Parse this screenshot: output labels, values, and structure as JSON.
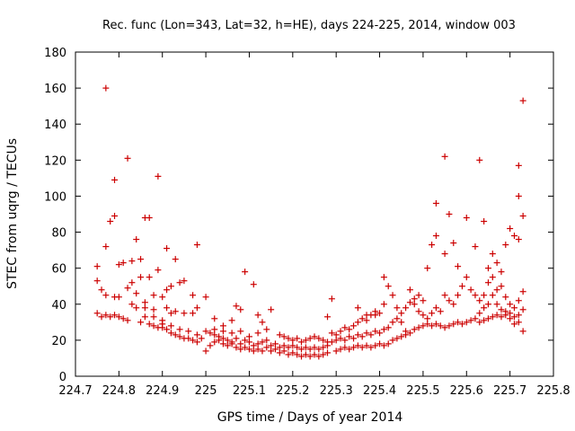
{
  "chart_data": {
    "type": "scatter",
    "title": "Rec. func (Lon=343, Lat=32, h=HE), days 224-225, 2014, window 003",
    "xlabel": "GPS time / Days of year 2014",
    "ylabel": "STEC from uqrg / TECUs",
    "xlim": [
      224.7,
      225.8
    ],
    "ylim": [
      0,
      180
    ],
    "xticks": [
      "224.7",
      "224.8",
      "224.9",
      "225",
      "225.1",
      "225.2",
      "225.3",
      "225.4",
      "225.5",
      "225.6",
      "225.7",
      "225.8"
    ],
    "yticks": [
      "0",
      "20",
      "40",
      "60",
      "80",
      "100",
      "120",
      "140",
      "160",
      "180"
    ],
    "grid": false,
    "marker": "+",
    "color": "#cc0000",
    "points": [
      [
        224.77,
        160
      ],
      [
        224.82,
        121
      ],
      [
        224.79,
        109
      ],
      [
        224.89,
        111
      ],
      [
        224.79,
        89
      ],
      [
        224.78,
        86
      ],
      [
        224.86,
        88
      ],
      [
        224.87,
        88
      ],
      [
        224.77,
        72
      ],
      [
        224.84,
        76
      ],
      [
        224.91,
        71
      ],
      [
        224.98,
        73
      ],
      [
        224.75,
        61
      ],
      [
        224.8,
        62
      ],
      [
        224.81,
        63
      ],
      [
        224.83,
        64
      ],
      [
        224.85,
        65
      ],
      [
        224.89,
        59
      ],
      [
        224.93,
        65
      ],
      [
        224.75,
        53
      ],
      [
        224.76,
        48
      ],
      [
        224.77,
        45
      ],
      [
        224.79,
        44
      ],
      [
        224.8,
        44
      ],
      [
        224.82,
        49
      ],
      [
        224.83,
        52
      ],
      [
        224.85,
        55
      ],
      [
        224.86,
        41
      ],
      [
        224.87,
        55
      ],
      [
        224.88,
        45
      ],
      [
        224.9,
        44
      ],
      [
        224.91,
        48
      ],
      [
        224.92,
        50
      ],
      [
        224.94,
        52
      ],
      [
        224.95,
        53
      ],
      [
        224.97,
        45
      ],
      [
        224.98,
        38
      ],
      [
        224.75,
        35
      ],
      [
        224.76,
        33
      ],
      [
        224.77,
        34
      ],
      [
        224.78,
        33
      ],
      [
        224.79,
        34
      ],
      [
        224.8,
        33
      ],
      [
        224.81,
        32
      ],
      [
        224.82,
        31
      ],
      [
        224.83,
        40
      ],
      [
        224.84,
        38
      ],
      [
        224.85,
        30
      ],
      [
        224.86,
        33
      ],
      [
        224.87,
        29
      ],
      [
        224.88,
        28
      ],
      [
        224.89,
        27
      ],
      [
        224.9,
        27
      ],
      [
        224.91,
        26
      ],
      [
        224.92,
        24
      ],
      [
        224.93,
        23
      ],
      [
        224.94,
        22
      ],
      [
        224.95,
        21
      ],
      [
        224.96,
        21
      ],
      [
        224.97,
        20
      ],
      [
        224.98,
        19
      ],
      [
        224.99,
        21
      ],
      [
        224.88,
        33
      ],
      [
        224.9,
        31
      ],
      [
        224.92,
        28
      ],
      [
        224.94,
        26
      ],
      [
        224.96,
        25
      ],
      [
        224.98,
        23
      ],
      [
        224.91,
        38
      ],
      [
        224.93,
        36
      ],
      [
        224.95,
        35
      ],
      [
        224.97,
        35
      ],
      [
        224.84,
        46
      ],
      [
        224.86,
        38
      ],
      [
        224.88,
        37
      ],
      [
        224.9,
        29
      ],
      [
        224.92,
        35
      ],
      [
        225.0,
        14
      ],
      [
        225.01,
        17
      ],
      [
        225.02,
        19
      ],
      [
        225.03,
        20
      ],
      [
        225.04,
        18
      ],
      [
        225.05,
        17
      ],
      [
        225.06,
        18
      ],
      [
        225.07,
        16
      ],
      [
        225.08,
        15
      ],
      [
        225.09,
        16
      ],
      [
        225.1,
        15
      ],
      [
        225.11,
        14
      ],
      [
        225.12,
        15
      ],
      [
        225.13,
        14
      ],
      [
        225.14,
        16
      ],
      [
        225.0,
        25
      ],
      [
        225.01,
        24
      ],
      [
        225.02,
        23
      ],
      [
        225.03,
        22
      ],
      [
        225.04,
        21
      ],
      [
        225.05,
        20
      ],
      [
        225.06,
        19
      ],
      [
        225.07,
        21
      ],
      [
        225.08,
        18
      ],
      [
        225.09,
        20
      ],
      [
        225.1,
        19
      ],
      [
        225.11,
        17
      ],
      [
        225.12,
        18
      ],
      [
        225.13,
        19
      ],
      [
        225.14,
        20
      ],
      [
        225.0,
        44
      ],
      [
        225.02,
        32
      ],
      [
        225.04,
        28
      ],
      [
        225.06,
        31
      ],
      [
        225.07,
        39
      ],
      [
        225.08,
        37
      ],
      [
        225.09,
        58
      ],
      [
        225.11,
        51
      ],
      [
        225.12,
        34
      ],
      [
        225.13,
        30
      ],
      [
        225.15,
        37
      ],
      [
        225.02,
        26
      ],
      [
        225.04,
        25
      ],
      [
        225.06,
        24
      ],
      [
        225.08,
        25
      ],
      [
        225.1,
        22
      ],
      [
        225.12,
        24
      ],
      [
        225.14,
        26
      ],
      [
        225.15,
        14
      ],
      [
        225.16,
        15
      ],
      [
        225.17,
        13
      ],
      [
        225.18,
        14
      ],
      [
        225.19,
        12
      ],
      [
        225.2,
        13
      ],
      [
        225.21,
        12
      ],
      [
        225.22,
        11
      ],
      [
        225.23,
        12
      ],
      [
        225.24,
        11
      ],
      [
        225.25,
        12
      ],
      [
        225.26,
        11
      ],
      [
        225.27,
        12
      ],
      [
        225.28,
        13
      ],
      [
        225.15,
        17
      ],
      [
        225.16,
        18
      ],
      [
        225.17,
        16
      ],
      [
        225.18,
        17
      ],
      [
        225.19,
        16
      ],
      [
        225.2,
        17
      ],
      [
        225.21,
        16
      ],
      [
        225.22,
        15
      ],
      [
        225.23,
        16
      ],
      [
        225.24,
        15
      ],
      [
        225.25,
        16
      ],
      [
        225.26,
        15
      ],
      [
        225.27,
        16
      ],
      [
        225.28,
        17
      ],
      [
        225.17,
        23
      ],
      [
        225.18,
        22
      ],
      [
        225.19,
        21
      ],
      [
        225.2,
        20
      ],
      [
        225.21,
        21
      ],
      [
        225.22,
        19
      ],
      [
        225.23,
        20
      ],
      [
        225.24,
        21
      ],
      [
        225.25,
        22
      ],
      [
        225.26,
        21
      ],
      [
        225.27,
        20
      ],
      [
        225.28,
        19
      ],
      [
        225.29,
        43
      ],
      [
        225.28,
        33
      ],
      [
        225.3,
        14
      ],
      [
        225.31,
        15
      ],
      [
        225.32,
        16
      ],
      [
        225.33,
        15
      ],
      [
        225.34,
        16
      ],
      [
        225.35,
        17
      ],
      [
        225.36,
        16
      ],
      [
        225.37,
        17
      ],
      [
        225.38,
        16
      ],
      [
        225.39,
        17
      ],
      [
        225.4,
        18
      ],
      [
        225.41,
        17
      ],
      [
        225.29,
        19
      ],
      [
        225.3,
        20
      ],
      [
        225.31,
        21
      ],
      [
        225.32,
        20
      ],
      [
        225.33,
        22
      ],
      [
        225.34,
        21
      ],
      [
        225.35,
        23
      ],
      [
        225.36,
        22
      ],
      [
        225.37,
        24
      ],
      [
        225.38,
        23
      ],
      [
        225.39,
        25
      ],
      [
        225.4,
        24
      ],
      [
        225.41,
        26
      ],
      [
        225.29,
        24
      ],
      [
        225.3,
        23
      ],
      [
        225.31,
        25
      ],
      [
        225.32,
        27
      ],
      [
        225.33,
        26
      ],
      [
        225.34,
        28
      ],
      [
        225.35,
        30
      ],
      [
        225.36,
        32
      ],
      [
        225.37,
        31
      ],
      [
        225.38,
        34
      ],
      [
        225.39,
        36
      ],
      [
        225.4,
        35
      ],
      [
        225.41,
        40
      ],
      [
        225.35,
        38
      ],
      [
        225.37,
        34
      ],
      [
        225.39,
        34
      ],
      [
        225.41,
        55
      ],
      [
        225.42,
        50
      ],
      [
        225.43,
        45
      ],
      [
        225.44,
        38
      ],
      [
        225.45,
        30
      ],
      [
        225.46,
        25
      ],
      [
        225.47,
        48
      ],
      [
        225.48,
        40
      ],
      [
        225.49,
        36
      ],
      [
        225.5,
        34
      ],
      [
        225.51,
        32
      ],
      [
        225.42,
        18
      ],
      [
        225.43,
        20
      ],
      [
        225.44,
        21
      ],
      [
        225.45,
        22
      ],
      [
        225.46,
        23
      ],
      [
        225.47,
        24
      ],
      [
        225.48,
        26
      ],
      [
        225.49,
        27
      ],
      [
        225.5,
        28
      ],
      [
        225.51,
        29
      ],
      [
        225.42,
        27
      ],
      [
        225.43,
        30
      ],
      [
        225.44,
        32
      ],
      [
        225.45,
        35
      ],
      [
        225.46,
        38
      ],
      [
        225.47,
        41
      ],
      [
        225.48,
        43
      ],
      [
        225.49,
        45
      ],
      [
        225.5,
        42
      ],
      [
        225.51,
        60
      ],
      [
        225.52,
        73
      ],
      [
        225.53,
        78
      ],
      [
        225.55,
        122
      ],
      [
        225.56,
        90
      ],
      [
        225.55,
        68
      ],
      [
        225.57,
        74
      ],
      [
        225.58,
        61
      ],
      [
        225.53,
        96
      ],
      [
        225.52,
        28
      ],
      [
        225.53,
        29
      ],
      [
        225.54,
        28
      ],
      [
        225.55,
        27
      ],
      [
        225.56,
        28
      ],
      [
        225.57,
        29
      ],
      [
        225.58,
        30
      ],
      [
        225.59,
        29
      ],
      [
        225.6,
        30
      ],
      [
        225.61,
        31
      ],
      [
        225.62,
        32
      ],
      [
        225.52,
        35
      ],
      [
        225.53,
        38
      ],
      [
        225.54,
        36
      ],
      [
        225.55,
        45
      ],
      [
        225.56,
        42
      ],
      [
        225.57,
        40
      ],
      [
        225.58,
        45
      ],
      [
        225.59,
        50
      ],
      [
        225.6,
        55
      ],
      [
        225.61,
        48
      ],
      [
        225.62,
        45
      ],
      [
        225.6,
        88
      ],
      [
        225.62,
        72
      ],
      [
        225.63,
        120
      ],
      [
        225.64,
        86
      ],
      [
        225.65,
        60
      ],
      [
        225.66,
        68
      ],
      [
        225.67,
        63
      ],
      [
        225.68,
        58
      ],
      [
        225.69,
        73
      ],
      [
        225.7,
        82
      ],
      [
        225.71,
        78
      ],
      [
        225.72,
        117
      ],
      [
        225.72,
        100
      ],
      [
        225.72,
        76
      ],
      [
        225.73,
        153
      ],
      [
        225.73,
        89
      ],
      [
        225.63,
        30
      ],
      [
        225.64,
        31
      ],
      [
        225.65,
        32
      ],
      [
        225.66,
        33
      ],
      [
        225.67,
        34
      ],
      [
        225.68,
        33
      ],
      [
        225.69,
        34
      ],
      [
        225.7,
        35
      ],
      [
        225.71,
        33
      ],
      [
        225.72,
        34
      ],
      [
        225.73,
        25
      ],
      [
        225.63,
        35
      ],
      [
        225.64,
        38
      ],
      [
        225.65,
        40
      ],
      [
        225.66,
        45
      ],
      [
        225.67,
        48
      ],
      [
        225.68,
        50
      ],
      [
        225.69,
        44
      ],
      [
        225.7,
        40
      ],
      [
        225.71,
        38
      ],
      [
        225.72,
        42
      ],
      [
        225.73,
        47
      ],
      [
        225.63,
        42
      ],
      [
        225.64,
        45
      ],
      [
        225.65,
        52
      ],
      [
        225.66,
        55
      ],
      [
        225.67,
        40
      ],
      [
        225.68,
        37
      ],
      [
        225.69,
        36
      ],
      [
        225.7,
        32
      ],
      [
        225.71,
        29
      ],
      [
        225.72,
        30
      ],
      [
        225.73,
        37
      ]
    ]
  }
}
